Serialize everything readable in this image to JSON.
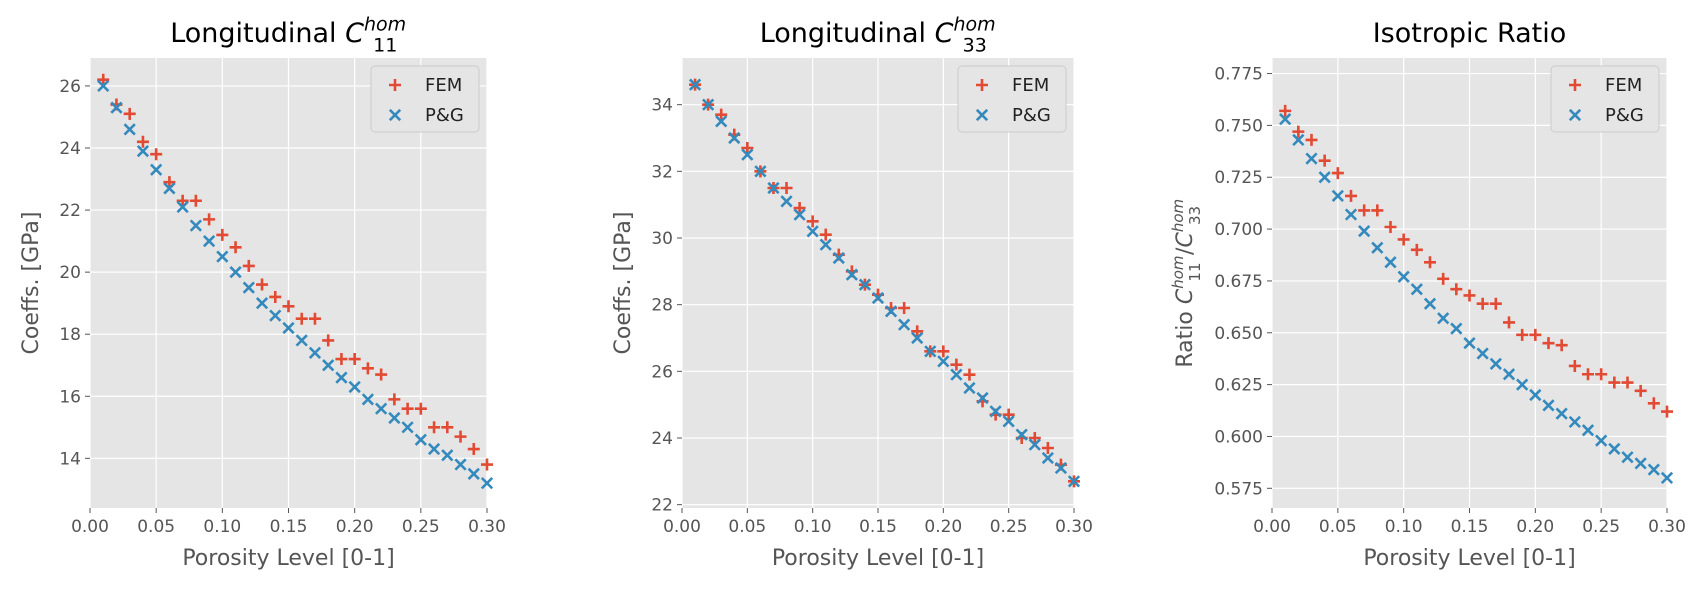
{
  "chart_data": [
    {
      "type": "scatter",
      "title": "Longitudinal ",
      "title_math": {
        "base": "C",
        "sup": "hom",
        "sub": "11"
      },
      "xlabel": "Porosity Level [0-1]",
      "ylabel": "Coeffs. [GPa]",
      "xlim": [
        0.0,
        0.3
      ],
      "ylim": [
        12.4,
        26.9
      ],
      "xticks": [
        "0.00",
        "0.05",
        "0.10",
        "0.15",
        "0.20",
        "0.25",
        "0.30"
      ],
      "yticks": [
        "14",
        "16",
        "18",
        "20",
        "22",
        "24",
        "26"
      ],
      "grid": true,
      "legend": "top-right",
      "series": [
        {
          "name": "FEM",
          "marker": "+",
          "color": "#E24A33",
          "x": [
            0.01,
            0.02,
            0.03,
            0.04,
            0.05,
            0.06,
            0.07,
            0.08,
            0.09,
            0.1,
            0.11,
            0.12,
            0.13,
            0.14,
            0.15,
            0.16,
            0.17,
            0.18,
            0.19,
            0.2,
            0.21,
            0.22,
            0.23,
            0.24,
            0.25,
            0.26,
            0.27,
            0.28,
            0.29,
            0.3
          ],
          "y": [
            26.2,
            25.4,
            25.1,
            24.2,
            23.8,
            22.9,
            22.3,
            22.3,
            21.7,
            21.2,
            20.8,
            20.2,
            19.6,
            19.2,
            18.9,
            18.5,
            18.5,
            17.8,
            17.2,
            17.2,
            16.9,
            16.7,
            15.9,
            15.6,
            15.6,
            15.0,
            15.0,
            14.7,
            14.3,
            13.8
          ]
        },
        {
          "name": "P&G",
          "marker": "x",
          "color": "#348ABD",
          "x": [
            0.01,
            0.02,
            0.03,
            0.04,
            0.05,
            0.06,
            0.07,
            0.08,
            0.09,
            0.1,
            0.11,
            0.12,
            0.13,
            0.14,
            0.15,
            0.16,
            0.17,
            0.18,
            0.19,
            0.2,
            0.21,
            0.22,
            0.23,
            0.24,
            0.25,
            0.26,
            0.27,
            0.28,
            0.29,
            0.3
          ],
          "y": [
            26.0,
            25.3,
            24.6,
            23.9,
            23.3,
            22.7,
            22.1,
            21.5,
            21.0,
            20.5,
            20.0,
            19.5,
            19.0,
            18.6,
            18.2,
            17.8,
            17.4,
            17.0,
            16.6,
            16.3,
            15.9,
            15.6,
            15.3,
            15.0,
            14.6,
            14.3,
            14.1,
            13.8,
            13.5,
            13.2
          ]
        }
      ]
    },
    {
      "type": "scatter",
      "title": "Longitudinal ",
      "title_math": {
        "base": "C",
        "sup": "hom",
        "sub": "33"
      },
      "xlabel": "Porosity Level [0-1]",
      "ylabel": "Coeffs. [GPa]",
      "xlim": [
        0.0,
        0.3
      ],
      "ylim": [
        21.9,
        35.4
      ],
      "xticks": [
        "0.00",
        "0.05",
        "0.10",
        "0.15",
        "0.20",
        "0.25",
        "0.30"
      ],
      "yticks": [
        "22",
        "24",
        "26",
        "28",
        "30",
        "32",
        "34"
      ],
      "grid": true,
      "legend": "top-right",
      "series": [
        {
          "name": "FEM",
          "marker": "+",
          "color": "#E24A33",
          "x": [
            0.01,
            0.02,
            0.03,
            0.04,
            0.05,
            0.06,
            0.07,
            0.08,
            0.09,
            0.1,
            0.11,
            0.12,
            0.13,
            0.14,
            0.15,
            0.16,
            0.17,
            0.18,
            0.19,
            0.2,
            0.21,
            0.22,
            0.23,
            0.24,
            0.25,
            0.26,
            0.27,
            0.28,
            0.29,
            0.3
          ],
          "y": [
            34.6,
            34.0,
            33.7,
            33.1,
            32.7,
            32.0,
            31.5,
            31.5,
            30.9,
            30.5,
            30.1,
            29.5,
            29.0,
            28.6,
            28.3,
            27.9,
            27.9,
            27.2,
            26.6,
            26.6,
            26.2,
            25.9,
            25.1,
            24.7,
            24.7,
            24.0,
            24.0,
            23.7,
            23.2,
            22.7
          ]
        },
        {
          "name": "P&G",
          "marker": "x",
          "color": "#348ABD",
          "x": [
            0.01,
            0.02,
            0.03,
            0.04,
            0.05,
            0.06,
            0.07,
            0.08,
            0.09,
            0.1,
            0.11,
            0.12,
            0.13,
            0.14,
            0.15,
            0.16,
            0.17,
            0.18,
            0.19,
            0.2,
            0.21,
            0.22,
            0.23,
            0.24,
            0.25,
            0.26,
            0.27,
            0.28,
            0.29,
            0.3
          ],
          "y": [
            34.6,
            34.0,
            33.5,
            33.0,
            32.5,
            32.0,
            31.5,
            31.1,
            30.7,
            30.2,
            29.8,
            29.4,
            28.9,
            28.6,
            28.2,
            27.8,
            27.4,
            27.0,
            26.6,
            26.3,
            25.9,
            25.5,
            25.2,
            24.8,
            24.5,
            24.1,
            23.8,
            23.4,
            23.1,
            22.7
          ]
        }
      ]
    },
    {
      "type": "scatter",
      "title": "Isotropic Ratio",
      "ylabel_math": {
        "prefix": "Ratio ",
        "num": {
          "base": "C",
          "sup": "hom",
          "sub": "11"
        },
        "den": {
          "base": "C",
          "sup": "hom",
          "sub": "33"
        }
      },
      "xlabel": "Porosity Level [0-1]",
      "xlim": [
        0.0,
        0.3
      ],
      "ylim": [
        0.5655,
        0.7825
      ],
      "xticks": [
        "0.00",
        "0.05",
        "0.10",
        "0.15",
        "0.20",
        "0.25",
        "0.30"
      ],
      "yticks": [
        "0.575",
        "0.600",
        "0.625",
        "0.650",
        "0.675",
        "0.700",
        "0.725",
        "0.750",
        "0.775"
      ],
      "grid": true,
      "legend": "top-right",
      "series": [
        {
          "name": "FEM",
          "marker": "+",
          "color": "#E24A33",
          "x": [
            0.01,
            0.02,
            0.03,
            0.04,
            0.05,
            0.06,
            0.07,
            0.08,
            0.09,
            0.1,
            0.11,
            0.12,
            0.13,
            0.14,
            0.15,
            0.16,
            0.17,
            0.18,
            0.19,
            0.2,
            0.21,
            0.22,
            0.23,
            0.24,
            0.25,
            0.26,
            0.27,
            0.28,
            0.29,
            0.3
          ],
          "y": [
            0.757,
            0.747,
            0.743,
            0.733,
            0.727,
            0.716,
            0.709,
            0.709,
            0.701,
            0.695,
            0.69,
            0.684,
            0.676,
            0.671,
            0.668,
            0.664,
            0.664,
            0.655,
            0.649,
            0.649,
            0.645,
            0.644,
            0.634,
            0.63,
            0.63,
            0.626,
            0.626,
            0.622,
            0.616,
            0.612
          ]
        },
        {
          "name": "P&G",
          "marker": "x",
          "color": "#348ABD",
          "x": [
            0.01,
            0.02,
            0.03,
            0.04,
            0.05,
            0.06,
            0.07,
            0.08,
            0.09,
            0.1,
            0.11,
            0.12,
            0.13,
            0.14,
            0.15,
            0.16,
            0.17,
            0.18,
            0.19,
            0.2,
            0.21,
            0.22,
            0.23,
            0.24,
            0.25,
            0.26,
            0.27,
            0.28,
            0.29,
            0.3
          ],
          "y": [
            0.753,
            0.743,
            0.734,
            0.725,
            0.716,
            0.707,
            0.699,
            0.691,
            0.684,
            0.677,
            0.671,
            0.664,
            0.657,
            0.652,
            0.645,
            0.64,
            0.635,
            0.63,
            0.625,
            0.62,
            0.615,
            0.611,
            0.607,
            0.603,
            0.598,
            0.594,
            0.59,
            0.587,
            0.584,
            0.58
          ]
        }
      ]
    }
  ]
}
